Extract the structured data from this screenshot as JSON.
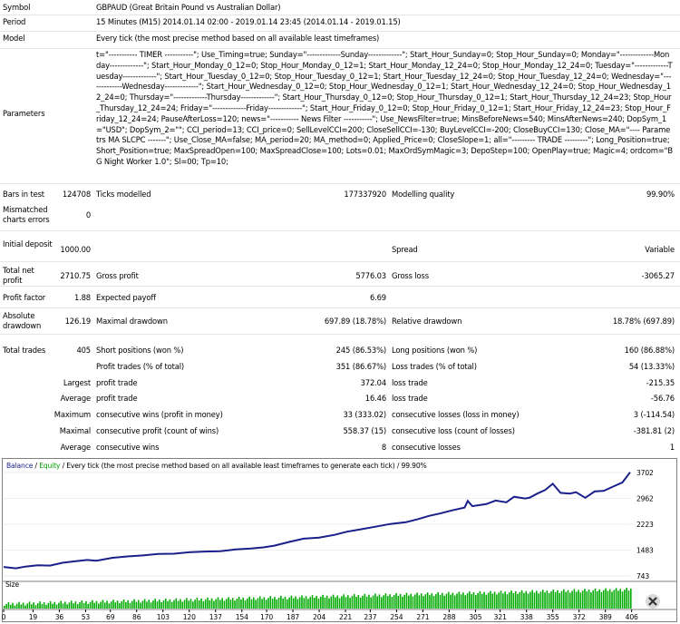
{
  "report": {
    "symbol_label": "Symbol",
    "symbol_value": "GBPAUD (Great Britain Pound vs Australian Dollar)",
    "period_label": "Period",
    "period_value": "15 Minutes (M15) 2014.01.14 02:00 - 2019.01.14 23:45 (2014.01.14 - 2019.01.15)",
    "model_label": "Model",
    "model_value": "Every tick (the most precise method based on all available least timeframes)",
    "parameters_label": "Parameters",
    "parameters_value": "t=\"----------- TIMER -----------\"; Use_Timing=true; Sunday=\"-------------Sunday-------------\"; Start_Hour_Sunday=0; Stop_Hour_Sunday=0; Monday=\"-------------Monday-------------\"; Start_Hour_Monday_0_12=0; Stop_Hour_Monday_0_12=1; Start_Hour_Monday_12_24=0; Stop_Hour_Monday_12_24=0; Tuesday=\"-------------Tuesday-------------\"; Start_Hour_Tuesday_0_12=0; Stop_Hour_Tuesday_0_12=1; Start_Hour_Tuesday_12_24=0; Stop_Hour_Tuesday_12_24=0; Wednesday=\"-------------Wednesday-------------\"; Start_Hour_Wednesday_0_12=0; Stop_Hour_Wednesday_0_12=1; Start_Hour_Wednesday_12_24=0; Stop_Hour_Wednesday_12_24=0; Thursday=\"-------------Thursday-------------\"; Start_Hour_Thursday_0_12=0; Stop_Hour_Thursday_0_12=1; Start_Hour_Thursday_12_24=23; Stop_Hour_Thursday_12_24=24; Friday=\"-------------Friday-------------\"; Start_Hour_Friday_0_12=0; Stop_Hour_Friday_0_12=1; Start_Hour_Friday_12_24=23; Stop_Hour_Friday_12_24=24; PauseAfterLoss=120; news=\"----------- News Filter -----------\"; Use_NewsFilter=true; MinsBeforeNews=540; MinsAfterNews=240; DopSym_1=\"USD\"; DopSym_2=\"\"; CCI_period=13; CCI_price=0; SellLevelCCI=200; CloseSellCCI=-130; BuyLevelCCI=-200; CloseBuyCCI=130; Close_MA=\"---- Parametrs MA SLCPC -------\"; Use_Close_MA=false; MA_period=20; MA_method=0; Applied_Price=0; CloseSlope=1; all=\"--------- TRADE ---------\"; Long_Position=true; Short_Position=true; MaxSpreadOpen=100; MaxSpreadClose=100; Lots=0.01; MaxOrdSymMagic=3; DepoStep=100; OpenPlay=true; Magic=4; ordcom=\"BG Night Worker 1.0\"; Sl=00; Tp=10;",
    "bars_label": "Bars in test",
    "bars_value": "124708",
    "ticks_label": "Ticks modelled",
    "ticks_value": "177337920",
    "quality_label": "Modelling quality",
    "quality_value": "99.90%",
    "mismatched_label": "Mismatched charts errors",
    "mismatched_value": "0",
    "deposit_label": "Initial deposit",
    "deposit_value": "1000.00",
    "spread_label": "Spread",
    "spread_value": "Variable",
    "netprofit_label": "Total net profit",
    "netprofit_value": "2710.75",
    "grossprofit_label": "Gross profit",
    "grossprofit_value": "5776.03",
    "grossloss_label": "Gross loss",
    "grossloss_value": "-3065.27",
    "pf_label": "Profit factor",
    "pf_value": "1.88",
    "payoff_label": "Expected payoff",
    "payoff_value": "6.69",
    "absdd_label": "Absolute drawdown",
    "absdd_value": "126.19",
    "maxdd_label": "Maximal drawdown",
    "maxdd_value": "697.89 (18.78%)",
    "reldd_label": "Relative drawdown",
    "reldd_value": "18.78% (697.89)",
    "trades_label": "Total trades",
    "trades_value": "405",
    "short_label": "Short positions (won %)",
    "short_value": "245 (86.53%)",
    "long_label": "Long positions (won %)",
    "long_value": "160 (86.88%)",
    "profit_trades_label": "Profit trades (% of total)",
    "profit_trades_value": "351 (86.67%)",
    "loss_trades_label": "Loss trades (% of total)",
    "loss_trades_value": "54 (13.33%)",
    "largest_label": "Largest",
    "largest_profit_label": "profit trade",
    "largest_profit_value": "372.04",
    "largest_loss_label": "loss trade",
    "largest_loss_value": "-215.35",
    "average_label": "Average",
    "average_profit_label": "profit trade",
    "average_profit_value": "16.46",
    "average_loss_label": "loss trade",
    "average_loss_value": "-56.76",
    "maximum_label": "Maximum",
    "max_wins_label": "consecutive wins (profit in money)",
    "max_wins_value": "33 (333.02)",
    "max_losses_label": "consecutive losses (loss in money)",
    "max_losses_value": "3 (-114.54)",
    "maximal_label": "Maximal",
    "maximal_profit_label": "consecutive profit (count of wins)",
    "maximal_profit_value": "558.37 (15)",
    "maximal_loss_label": "consecutive loss (count of losses)",
    "maximal_loss_value": "-381.81 (2)",
    "average2_label": "Average",
    "avg_wins_label": "consecutive wins",
    "avg_wins_value": "8",
    "avg_losses_label": "consecutive losses",
    "avg_losses_value": "1"
  },
  "chart_data": {
    "type": "line",
    "title_balance": "Balance",
    "title_sep": " / ",
    "title_equity": "Equity",
    "title_rest": " / Every tick (the most precise method based on all available least timeframes to generate each tick) / 99.90%",
    "size_label": "Size",
    "ylim": [
      743,
      3702
    ],
    "y_ticks": [
      "3702",
      "2962",
      "2223",
      "1483",
      "743"
    ],
    "x_ticks": [
      "0",
      "19",
      "36",
      "53",
      "69",
      "86",
      "103",
      "120",
      "137",
      "154",
      "170",
      "187",
      "204",
      "221",
      "237",
      "254",
      "271",
      "288",
      "305",
      "321",
      "338",
      "355",
      "372",
      "389",
      "406"
    ],
    "x_max": 405,
    "balance_points": [
      [
        0,
        1000
      ],
      [
        8,
        960
      ],
      [
        14,
        1010
      ],
      [
        22,
        1050
      ],
      [
        30,
        1040
      ],
      [
        38,
        1120
      ],
      [
        46,
        1160
      ],
      [
        54,
        1200
      ],
      [
        60,
        1180
      ],
      [
        70,
        1260
      ],
      [
        80,
        1300
      ],
      [
        90,
        1330
      ],
      [
        100,
        1370
      ],
      [
        110,
        1380
      ],
      [
        120,
        1420
      ],
      [
        130,
        1440
      ],
      [
        140,
        1450
      ],
      [
        150,
        1500
      ],
      [
        160,
        1530
      ],
      [
        168,
        1560
      ],
      [
        175,
        1610
      ],
      [
        185,
        1720
      ],
      [
        194,
        1810
      ],
      [
        204,
        1840
      ],
      [
        214,
        1920
      ],
      [
        222,
        2010
      ],
      [
        230,
        2070
      ],
      [
        240,
        2150
      ],
      [
        250,
        2230
      ],
      [
        260,
        2280
      ],
      [
        268,
        2370
      ],
      [
        275,
        2460
      ],
      [
        282,
        2530
      ],
      [
        290,
        2620
      ],
      [
        298,
        2700
      ],
      [
        300,
        2890
      ],
      [
        303,
        2740
      ],
      [
        312,
        2800
      ],
      [
        318,
        2900
      ],
      [
        325,
        2850
      ],
      [
        330,
        3010
      ],
      [
        337,
        2960
      ],
      [
        340,
        2980
      ],
      [
        345,
        3100
      ],
      [
        350,
        3200
      ],
      [
        355,
        3380
      ],
      [
        360,
        3120
      ],
      [
        366,
        3100
      ],
      [
        370,
        3140
      ],
      [
        376,
        2980
      ],
      [
        382,
        3160
      ],
      [
        388,
        3180
      ],
      [
        394,
        3300
      ],
      [
        400,
        3420
      ],
      [
        405,
        3710
      ]
    ],
    "equity_color": "#00c000",
    "balance_color": "#1b1f8a",
    "volume_color": "#00aa00"
  }
}
